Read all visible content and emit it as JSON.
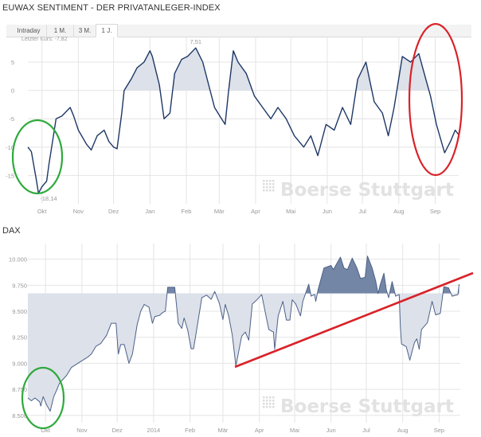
{
  "title": "EUWAX SENTIMENT - DER PRIVATANLEGER-INDEX",
  "tabs": [
    {
      "label": "Intraday",
      "active": false
    },
    {
      "label": "1 M.",
      "active": false
    },
    {
      "label": "3 M.",
      "active": false
    },
    {
      "label": "1 J.",
      "active": true
    }
  ],
  "last_price": "Letzter Kurs: -7,82",
  "watermark": "Boerse Stuttgart",
  "dax_title": "DAX",
  "colors": {
    "euwax_line": "#1d3766",
    "euwax_fill": "#dde1e9",
    "dax_line": "#4d6189",
    "dax_fill_below": "#dde1e9",
    "dax_fill_above": "#7386a6",
    "annotation_green": "#2eaa3c",
    "annotation_red": "#d92228"
  },
  "chart_data": [
    {
      "type": "line",
      "title": "EUWAX SENTIMENT - DER PRIVATANLEGER-INDEX",
      "xlim": [
        "2013-09-19",
        "2014-09-21"
      ],
      "ylim": [
        -20,
        9.5
      ],
      "yticks": [
        {
          "v": 5,
          "label": "5"
        },
        {
          "v": 0,
          "label": "0"
        },
        {
          "v": -5,
          "label": "-5"
        },
        {
          "v": -10,
          "label": "-10"
        },
        {
          "v": -15,
          "label": "-15"
        }
      ],
      "xticks": [
        {
          "date": "2013-10-01",
          "label": "Okt"
        },
        {
          "date": "2013-11-01",
          "label": "Nov"
        },
        {
          "date": "2013-12-01",
          "label": "Dez"
        },
        {
          "date": "2014-01-01",
          "label": "Jan"
        },
        {
          "date": "2014-02-01",
          "label": "Feb"
        },
        {
          "date": "2014-03-01",
          "label": "Mär"
        },
        {
          "date": "2014-04-01",
          "label": "Apr"
        },
        {
          "date": "2014-05-01",
          "label": "Mai"
        },
        {
          "date": "2014-06-01",
          "label": "Jun"
        },
        {
          "date": "2014-07-01",
          "label": "Jul"
        },
        {
          "date": "2014-08-01",
          "label": "Aug"
        },
        {
          "date": "2014-09-01",
          "label": "Sep"
        }
      ],
      "grid": true,
      "fill_threshold": 0,
      "max_label": {
        "date": "2014-02-09",
        "value": 7.51,
        "label": "7,51"
      },
      "min_label": {
        "date": "2013-09-28",
        "value": -18.14,
        "label": "-18,14"
      },
      "x": [
        "2013-09-19",
        "2013-09-22",
        "2013-09-26",
        "2013-09-28",
        "2013-10-01",
        "2013-10-05",
        "2013-10-07",
        "2013-10-10",
        "2013-10-13",
        "2013-10-18",
        "2013-10-25",
        "2013-10-28",
        "2013-11-01",
        "2013-11-08",
        "2013-11-12",
        "2013-11-17",
        "2013-11-23",
        "2013-11-27",
        "2013-12-01",
        "2013-12-04",
        "2013-12-08",
        "2013-12-10",
        "2013-12-16",
        "2013-12-21",
        "2013-12-27",
        "2014-01-01",
        "2014-01-03",
        "2014-01-09",
        "2014-01-13",
        "2014-01-18",
        "2014-01-22",
        "2014-01-28",
        "2014-02-02",
        "2014-02-09",
        "2014-02-15",
        "2014-02-20",
        "2014-02-25",
        "2014-03-03",
        "2014-03-06",
        "2014-03-09",
        "2014-03-13",
        "2014-03-17",
        "2014-03-24",
        "2014-03-31",
        "2014-04-07",
        "2014-04-14",
        "2014-04-20",
        "2014-04-27",
        "2014-05-04",
        "2014-05-12",
        "2014-05-18",
        "2014-05-24",
        "2014-05-31",
        "2014-06-07",
        "2014-06-14",
        "2014-06-21",
        "2014-06-27",
        "2014-07-04",
        "2014-07-11",
        "2014-07-18",
        "2014-07-23",
        "2014-07-28",
        "2014-08-04",
        "2014-08-11",
        "2014-08-18",
        "2014-08-24",
        "2014-08-28",
        "2014-09-02",
        "2014-09-09",
        "2014-09-14",
        "2014-09-18",
        "2014-09-21"
      ],
      "y": [
        -10,
        -10.8,
        -15.5,
        -18.14,
        -17,
        -16,
        -13,
        -9,
        -5,
        -4.5,
        -3,
        -4.5,
        -7,
        -9.5,
        -10.5,
        -8,
        -7,
        -9,
        -10,
        -10.3,
        -4,
        0,
        2,
        4,
        5,
        7,
        6,
        1,
        -5,
        -4,
        3,
        5.5,
        6,
        7.51,
        5,
        1,
        -3,
        -5,
        -6,
        0,
        7,
        5,
        3,
        -1,
        -3,
        -5,
        -3,
        -5,
        -8,
        -10,
        -8,
        -11.5,
        -6,
        -7,
        -3,
        -6,
        2,
        5,
        -2,
        -4,
        -8,
        -3,
        6,
        5,
        6.5,
        2,
        -1,
        -6,
        -11,
        -9,
        -7,
        -7.82
      ]
    },
    {
      "type": "area",
      "title": "DAX",
      "xlim": [
        "2013-09-16",
        "2014-09-19"
      ],
      "ylim": [
        8430,
        10150
      ],
      "yticks": [
        {
          "v": 10000,
          "label": "10.000"
        },
        {
          "v": 9750,
          "label": "9.750"
        },
        {
          "v": 9500,
          "label": "9.500"
        },
        {
          "v": 9250,
          "label": "9.250"
        },
        {
          "v": 9000,
          "label": "9.000"
        },
        {
          "v": 8750,
          "label": "8.750"
        },
        {
          "v": 8500,
          "label": "8.500"
        }
      ],
      "xticks": [
        {
          "date": "2013-10-01",
          "label": "Okt"
        },
        {
          "date": "2013-11-01",
          "label": "Nov"
        },
        {
          "date": "2013-12-01",
          "label": "Dez"
        },
        {
          "date": "2014-01-01",
          "label": "2014"
        },
        {
          "date": "2014-02-01",
          "label": "Feb"
        },
        {
          "date": "2014-03-01",
          "label": "Mär"
        },
        {
          "date": "2014-04-01",
          "label": "Apr"
        },
        {
          "date": "2014-05-01",
          "label": "Mai"
        },
        {
          "date": "2014-06-01",
          "label": "Jun"
        },
        {
          "date": "2014-07-01",
          "label": "Jul"
        },
        {
          "date": "2014-08-01",
          "label": "Aug"
        },
        {
          "date": "2014-09-01",
          "label": "Sep"
        }
      ],
      "grid": true,
      "fill_threshold": 9670,
      "x": [
        "2013-09-16",
        "2013-09-19",
        "2013-09-22",
        "2013-09-26",
        "2013-09-27",
        "2013-09-29",
        "2013-10-02",
        "2013-10-05",
        "2013-10-08",
        "2013-10-10",
        "2013-10-13",
        "2013-10-19",
        "2013-10-23",
        "2013-10-30",
        "2013-11-06",
        "2013-11-09",
        "2013-11-13",
        "2013-11-17",
        "2013-11-22",
        "2013-11-26",
        "2013-11-30",
        "2013-12-02",
        "2013-12-04",
        "2013-12-07",
        "2013-12-11",
        "2013-12-14",
        "2013-12-18",
        "2013-12-21",
        "2013-12-24",
        "2013-12-28",
        "2013-12-31",
        "2014-01-02",
        "2014-01-06",
        "2014-01-09",
        "2014-01-11",
        "2014-01-13",
        "2014-01-19",
        "2014-01-22",
        "2014-01-25",
        "2014-01-27",
        "2014-01-30",
        "2014-02-02",
        "2014-02-04",
        "2014-02-08",
        "2014-02-11",
        "2014-02-15",
        "2014-02-19",
        "2014-02-22",
        "2014-02-26",
        "2014-03-01",
        "2014-03-03",
        "2014-03-06",
        "2014-03-09",
        "2014-03-12",
        "2014-03-17",
        "2014-03-20",
        "2014-03-23",
        "2014-03-26",
        "2014-03-30",
        "2014-04-03",
        "2014-04-06",
        "2014-04-09",
        "2014-04-13",
        "2014-04-14",
        "2014-04-17",
        "2014-04-21",
        "2014-04-24",
        "2014-04-27",
        "2014-04-29",
        "2014-05-02",
        "2014-05-06",
        "2014-05-08",
        "2014-05-13",
        "2014-05-15",
        "2014-05-18",
        "2014-05-19",
        "2014-05-21",
        "2014-05-26",
        "2014-06-01",
        "2014-06-03",
        "2014-06-09",
        "2014-06-12",
        "2014-06-15",
        "2014-06-19",
        "2014-06-23",
        "2014-06-26",
        "2014-06-30",
        "2014-07-02",
        "2014-07-06",
        "2014-07-09",
        "2014-07-11",
        "2014-07-13",
        "2014-07-16",
        "2014-07-18",
        "2014-07-20",
        "2014-07-23",
        "2014-07-26",
        "2014-07-29",
        "2014-07-30",
        "2014-07-31",
        "2014-08-04",
        "2014-08-07",
        "2014-08-11",
        "2014-08-13",
        "2014-08-15",
        "2014-08-17",
        "2014-08-22",
        "2014-08-26",
        "2014-08-29",
        "2014-09-02",
        "2014-09-05",
        "2014-09-09",
        "2014-09-12",
        "2014-09-17",
        "2014-09-18"
      ],
      "y": [
        8667,
        8640,
        8667,
        8630,
        8590,
        8680,
        8600,
        8540,
        8680,
        8730,
        8810,
        8885,
        8960,
        9010,
        9060,
        9090,
        9165,
        9190,
        9270,
        9385,
        9385,
        9090,
        9180,
        9180,
        9000,
        9090,
        9370,
        9500,
        9565,
        9540,
        9385,
        9450,
        9460,
        9490,
        9500,
        9730,
        9730,
        9385,
        9335,
        9435,
        9320,
        9140,
        9140,
        9420,
        9630,
        9655,
        9615,
        9690,
        9575,
        9420,
        9565,
        9450,
        9270,
        8975,
        9261,
        9300,
        9223,
        9570,
        9610,
        9660,
        9490,
        9325,
        9300,
        9135,
        9455,
        9595,
        9415,
        9415,
        9610,
        9570,
        9455,
        9595,
        9760,
        9645,
        9660,
        9595,
        9710,
        9915,
        9940,
        9900,
        10020,
        9915,
        9900,
        10010,
        9915,
        9815,
        9825,
        10030,
        9915,
        9790,
        9670,
        9760,
        9865,
        9710,
        9630,
        9785,
        9645,
        9660,
        9355,
        9185,
        9160,
        9030,
        9200,
        9235,
        9135,
        9325,
        9390,
        9595,
        9465,
        9480,
        9735,
        9725,
        9645,
        9660,
        9760
      ]
    }
  ]
}
